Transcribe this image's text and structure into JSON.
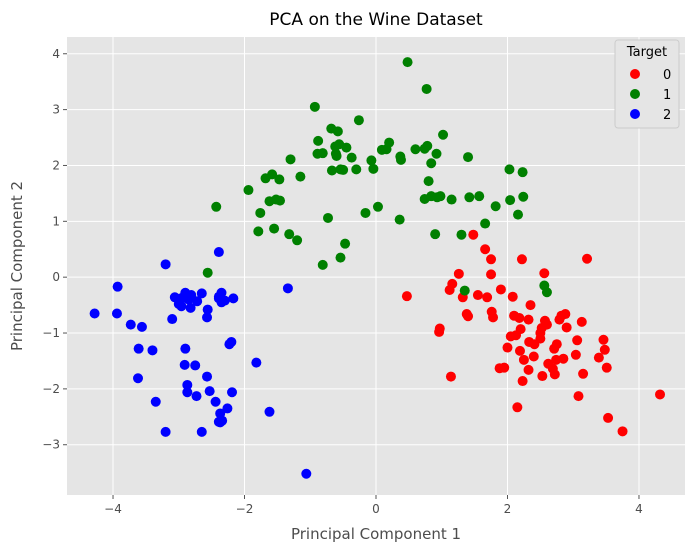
{
  "chart_data": {
    "type": "scatter",
    "title": "PCA on the Wine Dataset",
    "xlabel": "Principal Component 1",
    "ylabel": "Principal Component 2",
    "xlim": [
      -4.7,
      4.7
    ],
    "ylim": [
      -3.9,
      4.3
    ],
    "xticks": [
      -4,
      -2,
      0,
      2,
      4
    ],
    "yticks": [
      -3,
      -2,
      -1,
      0,
      1,
      2,
      3,
      4
    ],
    "grid": true,
    "legend": {
      "title": "Target",
      "position": "top-right"
    },
    "series": [
      {
        "name": "0",
        "color": "#ff0000",
        "points": [
          [
            0.47,
            -0.34
          ],
          [
            0.97,
            -0.92
          ],
          [
            1.12,
            -0.23
          ],
          [
            1.16,
            -0.12
          ],
          [
            1.14,
            -1.78
          ],
          [
            1.32,
            -0.36
          ],
          [
            0.96,
            -0.98
          ],
          [
            1.26,
            0.06
          ],
          [
            1.38,
            -0.66
          ],
          [
            1.55,
            -0.32
          ],
          [
            1.48,
            0.76
          ],
          [
            1.66,
            0.5
          ],
          [
            1.75,
            0.32
          ],
          [
            1.75,
            0.05
          ],
          [
            1.69,
            -0.36
          ],
          [
            1.76,
            -0.62
          ],
          [
            1.78,
            -0.72
          ],
          [
            1.9,
            -0.22
          ],
          [
            1.88,
            -1.63
          ],
          [
            2.08,
            -0.35
          ],
          [
            2.1,
            -0.69
          ],
          [
            2.05,
            -1.06
          ],
          [
            2.13,
            -1.04
          ],
          [
            2.0,
            -1.26
          ],
          [
            2.18,
            -0.73
          ],
          [
            2.2,
            -0.93
          ],
          [
            2.22,
            0.32
          ],
          [
            2.25,
            -1.48
          ],
          [
            2.32,
            -1.66
          ],
          [
            2.19,
            -1.32
          ],
          [
            2.15,
            -2.33
          ],
          [
            2.23,
            -1.86
          ],
          [
            2.32,
            -0.76
          ],
          [
            2.33,
            -1.16
          ],
          [
            2.4,
            -1.42
          ],
          [
            2.41,
            -1.2
          ],
          [
            2.5,
            -1.0
          ],
          [
            2.52,
            -0.91
          ],
          [
            2.53,
            -1.77
          ],
          [
            2.56,
            0.07
          ],
          [
            2.57,
            -0.78
          ],
          [
            2.62,
            -1.55
          ],
          [
            2.69,
            -1.64
          ],
          [
            2.71,
            -1.28
          ],
          [
            2.72,
            -1.74
          ],
          [
            2.74,
            -1.48
          ],
          [
            2.75,
            -1.2
          ],
          [
            2.79,
            -0.76
          ],
          [
            2.82,
            -0.69
          ],
          [
            2.85,
            -1.46
          ],
          [
            2.88,
            -0.66
          ],
          [
            3.04,
            -1.39
          ],
          [
            3.06,
            -1.13
          ],
          [
            3.08,
            -2.13
          ],
          [
            3.13,
            -0.8
          ],
          [
            3.15,
            -1.73
          ],
          [
            3.21,
            0.33
          ],
          [
            3.39,
            -1.44
          ],
          [
            3.46,
            -1.12
          ],
          [
            3.48,
            -1.3
          ],
          [
            3.51,
            -1.62
          ],
          [
            3.53,
            -2.52
          ],
          [
            3.75,
            -2.76
          ],
          [
            4.32,
            -2.1
          ],
          [
            2.9,
            -0.9
          ],
          [
            1.4,
            -0.7
          ],
          [
            2.5,
            -1.1
          ],
          [
            1.95,
            -1.62
          ],
          [
            2.35,
            -0.5
          ],
          [
            2.6,
            -0.85
          ]
        ]
      },
      {
        "name": "1",
        "color": "#008000",
        "points": [
          [
            0.48,
            3.85
          ],
          [
            0.77,
            3.37
          ],
          [
            -0.93,
            3.05
          ],
          [
            -0.26,
            2.81
          ],
          [
            -0.68,
            2.66
          ],
          [
            -0.58,
            2.61
          ],
          [
            -0.88,
            2.44
          ],
          [
            -0.56,
            2.38
          ],
          [
            -0.62,
            2.34
          ],
          [
            -0.81,
            2.22
          ],
          [
            -0.61,
            2.21
          ],
          [
            -0.37,
            2.14
          ],
          [
            -0.07,
            2.09
          ],
          [
            0.16,
            2.29
          ],
          [
            0.09,
            2.28
          ],
          [
            0.2,
            2.41
          ],
          [
            0.37,
            2.16
          ],
          [
            0.38,
            2.1
          ],
          [
            0.6,
            2.29
          ],
          [
            0.74,
            2.3
          ],
          [
            0.78,
            2.35
          ],
          [
            0.84,
            2.04
          ],
          [
            0.92,
            2.21
          ],
          [
            1.02,
            2.55
          ],
          [
            1.4,
            2.15
          ],
          [
            2.03,
            1.93
          ],
          [
            2.23,
            1.88
          ],
          [
            -1.58,
            1.84
          ],
          [
            -1.3,
            2.11
          ],
          [
            -0.45,
            2.32
          ],
          [
            -0.54,
            1.93
          ],
          [
            -0.3,
            1.93
          ],
          [
            -0.67,
            1.91
          ],
          [
            -0.04,
            1.94
          ],
          [
            -0.5,
            1.92
          ],
          [
            -0.6,
            2.17
          ],
          [
            -0.89,
            2.21
          ],
          [
            -1.15,
            1.8
          ],
          [
            -1.47,
            1.75
          ],
          [
            -1.68,
            1.77
          ],
          [
            -1.94,
            1.56
          ],
          [
            -1.62,
            1.36
          ],
          [
            -1.52,
            1.39
          ],
          [
            -1.46,
            1.37
          ],
          [
            -1.76,
            1.15
          ],
          [
            -1.79,
            0.82
          ],
          [
            -1.55,
            0.87
          ],
          [
            -1.32,
            0.77
          ],
          [
            -1.2,
            0.66
          ],
          [
            -0.73,
            1.06
          ],
          [
            -0.54,
            0.35
          ],
          [
            -0.47,
            0.6
          ],
          [
            -0.81,
            0.22
          ],
          [
            -0.16,
            1.15
          ],
          [
            0.03,
            1.26
          ],
          [
            0.36,
            1.03
          ],
          [
            0.74,
            1.4
          ],
          [
            0.84,
            1.45
          ],
          [
            0.93,
            1.43
          ],
          [
            0.98,
            1.45
          ],
          [
            1.15,
            1.39
          ],
          [
            1.42,
            1.43
          ],
          [
            1.57,
            1.45
          ],
          [
            1.82,
            1.27
          ],
          [
            1.66,
            0.96
          ],
          [
            0.9,
            0.77
          ],
          [
            1.3,
            0.76
          ],
          [
            2.24,
            1.44
          ],
          [
            2.04,
            1.38
          ],
          [
            2.16,
            1.12
          ],
          [
            -2.43,
            1.26
          ],
          [
            -2.56,
            0.08
          ],
          [
            1.35,
            -0.24
          ],
          [
            2.56,
            -0.15
          ],
          [
            2.6,
            -0.27
          ],
          [
            0.8,
            1.72
          ]
        ]
      },
      {
        "name": "2",
        "color": "#0000ff",
        "points": [
          [
            -4.28,
            -0.65
          ],
          [
            -3.93,
            -0.17
          ],
          [
            -3.94,
            -0.65
          ],
          [
            -3.73,
            -0.85
          ],
          [
            -3.56,
            -0.89
          ],
          [
            -3.61,
            -1.28
          ],
          [
            -3.62,
            -1.81
          ],
          [
            -3.4,
            -1.31
          ],
          [
            -3.35,
            -2.23
          ],
          [
            -3.2,
            -2.77
          ],
          [
            -3.2,
            0.23
          ],
          [
            -3.1,
            -0.75
          ],
          [
            -3.06,
            -0.36
          ],
          [
            -2.95,
            -0.37
          ],
          [
            -2.9,
            -0.28
          ],
          [
            -2.82,
            -0.55
          ],
          [
            -2.81,
            -0.32
          ],
          [
            -2.72,
            -0.43
          ],
          [
            -2.65,
            -0.29
          ],
          [
            -2.9,
            -1.28
          ],
          [
            -2.91,
            -1.57
          ],
          [
            -2.75,
            -1.58
          ],
          [
            -2.73,
            -2.13
          ],
          [
            -2.56,
            -0.58
          ],
          [
            -2.57,
            -0.72
          ],
          [
            -2.57,
            -1.78
          ],
          [
            -2.53,
            -2.04
          ],
          [
            -2.44,
            -2.23
          ],
          [
            -2.37,
            -2.44
          ],
          [
            -2.39,
            -2.59
          ],
          [
            -2.34,
            -2.57
          ],
          [
            -2.26,
            -2.35
          ],
          [
            -2.35,
            -0.28
          ],
          [
            -2.39,
            -0.38
          ],
          [
            -2.35,
            -0.45
          ],
          [
            -2.3,
            -0.42
          ],
          [
            -2.23,
            -1.2
          ],
          [
            -2.2,
            -1.16
          ],
          [
            -2.19,
            -2.06
          ],
          [
            -2.17,
            -0.38
          ],
          [
            -2.39,
            0.45
          ],
          [
            -1.82,
            -1.53
          ],
          [
            -1.62,
            -2.41
          ],
          [
            -1.34,
            -0.2
          ],
          [
            -1.06,
            -3.52
          ],
          [
            -2.87,
            -1.93
          ],
          [
            -2.87,
            -2.06
          ],
          [
            -2.65,
            -2.77
          ],
          [
            -2.96,
            -0.52
          ],
          [
            -2.37,
            -2.6
          ],
          [
            -2.39,
            -0.35
          ],
          [
            -2.85,
            -0.4
          ],
          [
            -3.0,
            -0.48
          ]
        ]
      }
    ]
  }
}
